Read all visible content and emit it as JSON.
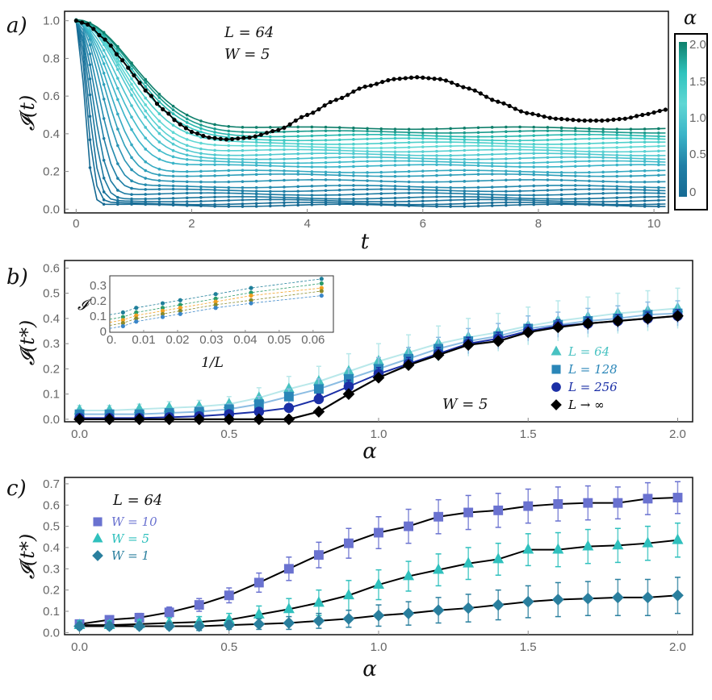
{
  "panels": {
    "a": {
      "label": "a)",
      "xlabel": "t",
      "ylabel": "𝓘(t)",
      "annotations": [
        "L = 64",
        "W = 5"
      ],
      "colorbar": {
        "title": "α",
        "ticks": [
          "2.0",
          "1.5",
          "1.0",
          "0.5",
          "0"
        ],
        "colors": [
          "#0e7f6b",
          "#2fc3bd",
          "#5fd7d4",
          "#3ab4c8",
          "#1f7fa6",
          "#166a93"
        ]
      }
    },
    "b": {
      "label": "b)",
      "xlabel": "α",
      "ylabel": "𝓘(t*)",
      "annotation": "W = 5",
      "legend": [
        {
          "label": "L = 64",
          "color": "#48c2c2",
          "marker": "triangle"
        },
        {
          "label": "L = 128",
          "color": "#2a86b8",
          "marker": "square"
        },
        {
          "label": "L = 256",
          "color": "#1b2fa6",
          "marker": "circle"
        },
        {
          "label": "L → ∞",
          "color": "#000000",
          "marker": "diamond"
        }
      ],
      "inset": {
        "xlabel": "1/L",
        "ylabel": "𝓘"
      }
    },
    "c": {
      "label": "c)",
      "xlabel": "α",
      "ylabel": "𝓘(t*)",
      "annotation": "L = 64",
      "legend": [
        {
          "label": "W = 10",
          "color": "#6a72d0",
          "marker": "square"
        },
        {
          "label": "W = 5",
          "color": "#2fc0bd",
          "marker": "triangle"
        },
        {
          "label": "W = 1",
          "color": "#2a7f9e",
          "marker": "diamond"
        }
      ]
    }
  },
  "chart_data": [
    {
      "id": "a",
      "type": "line",
      "xlim": [
        -0.2,
        10.25
      ],
      "ylim": [
        -0.02,
        1.05
      ],
      "xticks": [
        0,
        2,
        4,
        6,
        8,
        10
      ],
      "xtick_labels": [
        "0",
        "2",
        "4",
        "6",
        "8",
        "10"
      ],
      "yticks": [
        0.0,
        0.2,
        0.4,
        0.6,
        0.8,
        1.0
      ],
      "ytick_labels": [
        "0.0",
        "0.2",
        "0.4",
        "0.6",
        "0.8",
        "1.0"
      ],
      "alpha_series": {
        "alphas": [
          0.0,
          0.1,
          0.2,
          0.3,
          0.4,
          0.5,
          0.6,
          0.7,
          0.8,
          0.9,
          1.0,
          1.1,
          1.2,
          1.3,
          1.4,
          1.5,
          1.6,
          1.7,
          1.8,
          1.9,
          2.0
        ],
        "plateau": [
          0.02,
          0.03,
          0.045,
          0.06,
          0.08,
          0.1,
          0.12,
          0.15,
          0.18,
          0.2,
          0.23,
          0.25,
          0.27,
          0.29,
          0.31,
          0.33,
          0.35,
          0.37,
          0.39,
          0.41,
          0.43
        ],
        "decay_time": [
          0.18,
          0.22,
          0.26,
          0.31,
          0.36,
          0.42,
          0.48,
          0.55,
          0.62,
          0.7,
          0.78,
          0.85,
          0.92,
          1.0,
          1.05,
          1.1,
          1.15,
          1.2,
          1.22,
          1.25,
          1.28
        ]
      },
      "black_series": {
        "name": "L → ∞",
        "x": [
          0,
          0.2,
          0.5,
          0.8,
          1.0,
          1.2,
          1.5,
          1.8,
          2.0,
          2.3,
          2.6,
          3.0,
          3.5,
          4.0,
          4.5,
          5.0,
          5.5,
          5.9,
          6.3,
          6.8,
          7.3,
          7.8,
          8.3,
          8.8,
          9.1,
          9.5,
          9.8,
          10.25
        ],
        "y": [
          1.0,
          0.98,
          0.9,
          0.79,
          0.71,
          0.63,
          0.53,
          0.45,
          0.41,
          0.38,
          0.37,
          0.38,
          0.42,
          0.5,
          0.58,
          0.65,
          0.69,
          0.7,
          0.69,
          0.64,
          0.57,
          0.51,
          0.48,
          0.47,
          0.47,
          0.48,
          0.5,
          0.53
        ]
      }
    },
    {
      "id": "b",
      "type": "line",
      "xlim": [
        -0.05,
        2.05
      ],
      "ylim": [
        -0.01,
        0.63
      ],
      "xticks": [
        0.0,
        0.5,
        1.0,
        1.5,
        2.0
      ],
      "xtick_labels": [
        "0.0",
        "0.5",
        "1.0",
        "1.5",
        "2.0"
      ],
      "yticks": [
        0.0,
        0.1,
        0.2,
        0.3,
        0.4,
        0.5,
        0.6
      ],
      "ytick_labels": [
        "0.0",
        "0.1",
        "0.2",
        "0.3",
        "0.4",
        "0.5",
        "0.6"
      ],
      "series": [
        {
          "name": "L = 64",
          "marker": "triangle",
          "color": "#48c2c2",
          "line_color": "#b9e8ea",
          "x": [
            0.0,
            0.1,
            0.2,
            0.3,
            0.4,
            0.5,
            0.6,
            0.7,
            0.8,
            0.9,
            1.0,
            1.1,
            1.2,
            1.3,
            1.4,
            1.5,
            1.6,
            1.7,
            1.8,
            1.9,
            2.0
          ],
          "y": [
            0.035,
            0.035,
            0.04,
            0.045,
            0.05,
            0.06,
            0.085,
            0.12,
            0.15,
            0.19,
            0.23,
            0.265,
            0.3,
            0.325,
            0.345,
            0.37,
            0.39,
            0.405,
            0.42,
            0.43,
            0.44
          ],
          "err": [
            0.02,
            0.02,
            0.02,
            0.025,
            0.025,
            0.03,
            0.04,
            0.05,
            0.06,
            0.07,
            0.07,
            0.07,
            0.07,
            0.075,
            0.075,
            0.075,
            0.08,
            0.08,
            0.08,
            0.08,
            0.08
          ]
        },
        {
          "name": "L = 128",
          "marker": "square",
          "color": "#2a86b8",
          "line_color": "#8cbde3",
          "x": [
            0.0,
            0.1,
            0.2,
            0.3,
            0.4,
            0.5,
            0.6,
            0.7,
            0.8,
            0.9,
            1.0,
            1.1,
            1.2,
            1.3,
            1.4,
            1.5,
            1.6,
            1.7,
            1.8,
            1.9,
            2.0
          ],
          "y": [
            0.02,
            0.02,
            0.02,
            0.025,
            0.03,
            0.04,
            0.06,
            0.09,
            0.12,
            0.16,
            0.2,
            0.24,
            0.28,
            0.31,
            0.33,
            0.36,
            0.375,
            0.39,
            0.4,
            0.415,
            0.42
          ],
          "err": [
            0.015,
            0.015,
            0.015,
            0.015,
            0.02,
            0.02,
            0.03,
            0.03,
            0.04,
            0.04,
            0.045,
            0.045,
            0.045,
            0.05,
            0.05,
            0.05,
            0.05,
            0.05,
            0.05,
            0.05,
            0.05
          ]
        },
        {
          "name": "L = 256",
          "marker": "circle",
          "color": "#1b2fa6",
          "line_color": "#1b2fa6",
          "x": [
            0.0,
            0.1,
            0.2,
            0.3,
            0.4,
            0.5,
            0.6,
            0.7,
            0.8,
            0.9,
            1.0,
            1.1,
            1.2,
            1.3,
            1.4,
            1.5,
            1.6,
            1.7,
            1.8,
            1.9,
            2.0
          ],
          "y": [
            0.005,
            0.005,
            0.005,
            0.008,
            0.012,
            0.02,
            0.03,
            0.045,
            0.08,
            0.13,
            0.18,
            0.22,
            0.26,
            0.3,
            0.32,
            0.35,
            0.37,
            0.38,
            0.39,
            0.4,
            0.41
          ],
          "err": [
            0.005,
            0.005,
            0.005,
            0.005,
            0.008,
            0.01,
            0.012,
            0.015,
            0.02,
            0.025,
            0.025,
            0.025,
            0.025,
            0.025,
            0.025,
            0.025,
            0.025,
            0.025,
            0.025,
            0.025,
            0.025
          ]
        },
        {
          "name": "L → ∞",
          "marker": "diamond",
          "color": "#000000",
          "line_color": "#000000",
          "x": [
            0.0,
            0.1,
            0.2,
            0.3,
            0.4,
            0.5,
            0.6,
            0.7,
            0.8,
            0.9,
            1.0,
            1.1,
            1.2,
            1.3,
            1.4,
            1.5,
            1.6,
            1.7,
            1.8,
            1.9,
            2.0
          ],
          "y": [
            0.0,
            0.0,
            0.0,
            0.0,
            0.0,
            0.0,
            0.0,
            0.0,
            0.03,
            0.1,
            0.165,
            0.215,
            0.255,
            0.295,
            0.31,
            0.345,
            0.365,
            0.38,
            0.39,
            0.4,
            0.41
          ],
          "err": [
            0,
            0,
            0,
            0,
            0,
            0,
            0,
            0,
            0,
            0,
            0,
            0,
            0,
            0,
            0,
            0,
            0,
            0,
            0,
            0,
            0
          ]
        }
      ],
      "inset": {
        "xlim": [
          0,
          0.066
        ],
        "ylim": [
          0,
          0.37
        ],
        "xticks": [
          0.01,
          0.02,
          0.03,
          0.04,
          0.05,
          0.06
        ],
        "xtick_labels": [
          "0.01",
          "0.02",
          "0.03",
          "0.04",
          "0.05",
          "0.06"
        ],
        "origin_label": "0.",
        "yticks": [
          0.0,
          0.1,
          0.2,
          0.3
        ],
        "ytick_labels": [
          "0",
          "0.1",
          "0.2",
          "0.3"
        ],
        "x_points": [
          0.0039,
          0.0078,
          0.0156,
          0.0208,
          0.03125,
          0.0417,
          0.0625
        ],
        "series": [
          {
            "color": "#1f7f9a",
            "y": [
              0.13,
              0.16,
              0.19,
              0.21,
              0.25,
              0.29,
              0.35
            ]
          },
          {
            "color": "#2a9a6a",
            "y": [
              0.1,
              0.13,
              0.16,
              0.18,
              0.22,
              0.26,
              0.32
            ]
          },
          {
            "color": "#f0a020",
            "y": [
              0.08,
              0.11,
              0.14,
              0.16,
              0.2,
              0.24,
              0.29
            ]
          },
          {
            "color": "#8a8a2a",
            "y": [
              0.06,
              0.09,
              0.12,
              0.14,
              0.18,
              0.21,
              0.27
            ]
          },
          {
            "color": "#3a86c8",
            "y": [
              0.04,
              0.07,
              0.1,
              0.12,
              0.16,
              0.19,
              0.24
            ]
          }
        ]
      }
    },
    {
      "id": "c",
      "type": "line",
      "xlim": [
        -0.05,
        2.05
      ],
      "ylim": [
        -0.01,
        0.73
      ],
      "xticks": [
        0.0,
        0.5,
        1.0,
        1.5,
        2.0
      ],
      "xtick_labels": [
        "0.0",
        "0.5",
        "1.0",
        "1.5",
        "2.0"
      ],
      "yticks": [
        0.0,
        0.1,
        0.2,
        0.3,
        0.4,
        0.5,
        0.6,
        0.7
      ],
      "ytick_labels": [
        "0.0",
        "0.1",
        "0.2",
        "0.3",
        "0.4",
        "0.5",
        "0.6",
        "0.7"
      ],
      "series": [
        {
          "name": "W = 10",
          "marker": "square",
          "color": "#6a72d0",
          "x": [
            0.0,
            0.1,
            0.2,
            0.3,
            0.4,
            0.5,
            0.6,
            0.7,
            0.8,
            0.9,
            1.0,
            1.1,
            1.2,
            1.3,
            1.4,
            1.5,
            1.6,
            1.7,
            1.8,
            1.9,
            2.0
          ],
          "y": [
            0.04,
            0.06,
            0.07,
            0.095,
            0.13,
            0.175,
            0.235,
            0.3,
            0.365,
            0.42,
            0.47,
            0.5,
            0.545,
            0.565,
            0.575,
            0.595,
            0.605,
            0.61,
            0.61,
            0.63,
            0.635
          ],
          "err": [
            0.015,
            0.015,
            0.02,
            0.025,
            0.03,
            0.035,
            0.045,
            0.055,
            0.06,
            0.07,
            0.075,
            0.08,
            0.08,
            0.08,
            0.08,
            0.08,
            0.08,
            0.08,
            0.075,
            0.075,
            0.075
          ]
        },
        {
          "name": "W = 5",
          "marker": "triangle",
          "color": "#2fc0bd",
          "x": [
            0.0,
            0.1,
            0.2,
            0.3,
            0.4,
            0.5,
            0.6,
            0.7,
            0.8,
            0.9,
            1.0,
            1.1,
            1.2,
            1.3,
            1.4,
            1.5,
            1.6,
            1.7,
            1.8,
            1.9,
            2.0
          ],
          "y": [
            0.035,
            0.035,
            0.04,
            0.045,
            0.05,
            0.06,
            0.085,
            0.11,
            0.14,
            0.175,
            0.225,
            0.265,
            0.295,
            0.325,
            0.345,
            0.39,
            0.39,
            0.405,
            0.41,
            0.42,
            0.435
          ],
          "err": [
            0.02,
            0.02,
            0.02,
            0.025,
            0.025,
            0.03,
            0.04,
            0.05,
            0.06,
            0.07,
            0.07,
            0.07,
            0.075,
            0.075,
            0.075,
            0.075,
            0.08,
            0.08,
            0.08,
            0.08,
            0.08
          ]
        },
        {
          "name": "W = 1",
          "marker": "diamond",
          "color": "#2a7f9e",
          "x": [
            0.0,
            0.1,
            0.2,
            0.3,
            0.4,
            0.5,
            0.6,
            0.7,
            0.8,
            0.9,
            1.0,
            1.1,
            1.2,
            1.3,
            1.4,
            1.5,
            1.6,
            1.7,
            1.8,
            1.9,
            2.0
          ],
          "y": [
            0.03,
            0.03,
            0.03,
            0.03,
            0.03,
            0.035,
            0.04,
            0.045,
            0.055,
            0.065,
            0.08,
            0.09,
            0.105,
            0.115,
            0.13,
            0.145,
            0.155,
            0.16,
            0.165,
            0.165,
            0.175
          ],
          "err": [
            0.015,
            0.015,
            0.015,
            0.015,
            0.02,
            0.02,
            0.025,
            0.03,
            0.035,
            0.04,
            0.05,
            0.055,
            0.06,
            0.065,
            0.07,
            0.075,
            0.08,
            0.08,
            0.085,
            0.085,
            0.085
          ]
        }
      ]
    }
  ]
}
